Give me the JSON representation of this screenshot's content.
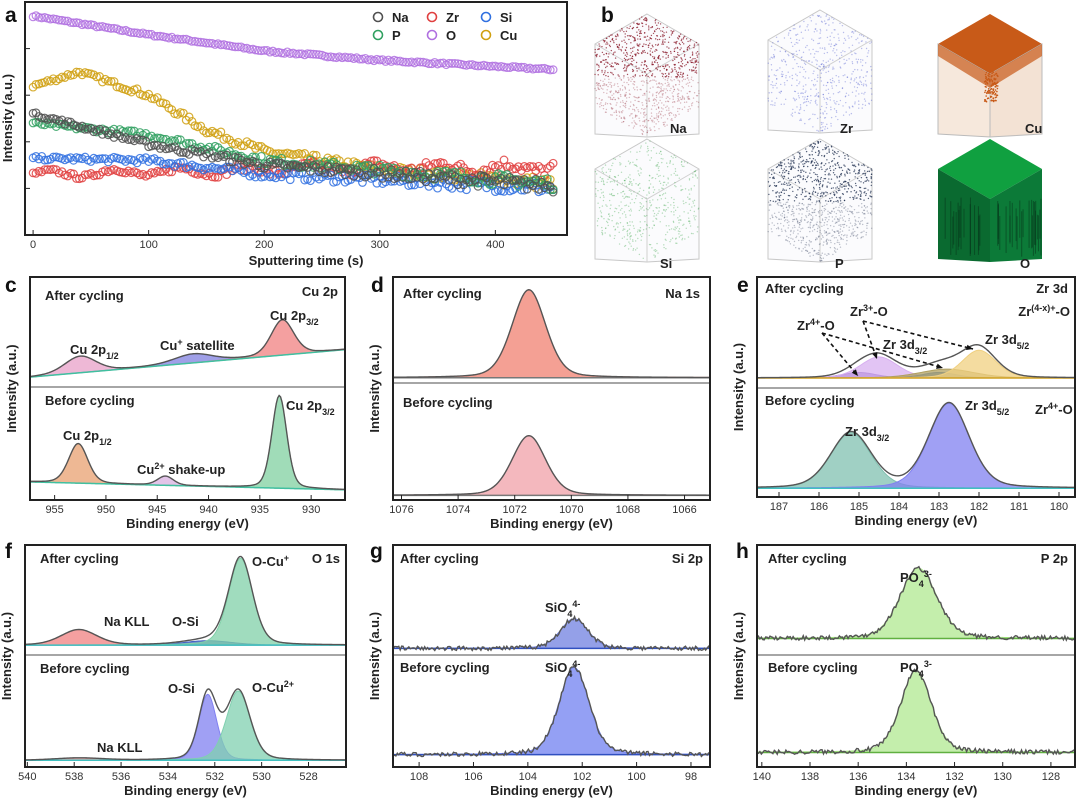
{
  "figure": {
    "panel_letters": [
      "a",
      "b",
      "c",
      "d",
      "e",
      "f",
      "g",
      "h"
    ]
  },
  "chart_data": [
    {
      "id": "a",
      "type": "scatter",
      "xlabel": "Sputtering time (s)",
      "ylabel": "Intensity (a.u.)",
      "xlim": [
        -7,
        462
      ],
      "ylim": [
        0,
        1
      ],
      "xticks": [
        0,
        100,
        200,
        300,
        400
      ],
      "legend": {
        "placement": "top-right",
        "entries": [
          "Na",
          "Zr",
          "Si",
          "P",
          "O",
          "Cu"
        ]
      },
      "series": [
        {
          "name": "O",
          "color": "#b070e0",
          "t": [
            0,
            100,
            200,
            300,
            450
          ],
          "values": [
            0.94,
            0.86,
            0.79,
            0.75,
            0.71
          ]
        },
        {
          "name": "Cu",
          "color": "#d0a010",
          "t": [
            0,
            40,
            100,
            150,
            200,
            300,
            450
          ],
          "values": [
            0.64,
            0.7,
            0.6,
            0.45,
            0.36,
            0.28,
            0.22
          ]
        },
        {
          "name": "Zr",
          "color": "#e04040",
          "t": [
            0,
            100,
            300,
            450
          ],
          "values": [
            0.26,
            0.27,
            0.29,
            0.29
          ]
        },
        {
          "name": "Si",
          "color": "#3070e0",
          "t": [
            0,
            100,
            200,
            450
          ],
          "values": [
            0.33,
            0.32,
            0.26,
            0.2
          ]
        },
        {
          "name": "P",
          "color": "#30a060",
          "t": [
            0,
            100,
            200,
            450
          ],
          "values": [
            0.48,
            0.43,
            0.32,
            0.22
          ]
        },
        {
          "name": "Na",
          "color": "#505050",
          "t": [
            0,
            100,
            200,
            450
          ],
          "values": [
            0.52,
            0.39,
            0.3,
            0.21
          ]
        }
      ]
    },
    {
      "id": "b",
      "type": "3d-element-maps",
      "maps": [
        {
          "element": "Na",
          "color": "#8a1a2a",
          "density": "medium"
        },
        {
          "element": "Zr",
          "color": "#3848c8",
          "density": "sparse"
        },
        {
          "element": "Cu",
          "color": "#c85a18",
          "density": "dense-top"
        },
        {
          "element": "Si",
          "color": "#30a040",
          "density": "sparse"
        },
        {
          "element": "P",
          "color": "#203050",
          "density": "medium"
        },
        {
          "element": "O",
          "color": "#10a040",
          "density": "dense"
        }
      ]
    },
    {
      "id": "c",
      "type": "line",
      "title": "Cu 2p",
      "xlabel": "Binding energy (eV)",
      "ylabel": "Intensity (a.u.)",
      "xlim": [
        957.4,
        926.7
      ],
      "xticks": [
        955,
        950,
        945,
        940,
        935,
        930
      ],
      "halves": [
        {
          "label": "After cycling",
          "baseline": [
            0.09,
            0.34
          ],
          "baseline_color": "#40c0a0",
          "peaks": [
            {
              "name": "Cu 2p1/2",
              "center": 952.5,
              "height": 0.15,
              "width": 1.8,
              "color": "#e8a0c8"
            },
            {
              "name": "Cu+ satellite",
              "center": 941.5,
              "height": 0.08,
              "width": 2.2,
              "color": "#8080e0"
            },
            {
              "name": "Cu 2p3/2",
              "center": 932.8,
              "height": 0.32,
              "width": 1.3,
              "color": "#f08080"
            }
          ],
          "annotations": [
            [
              [
                "Cu 2p",
                ""
              ],
              [
                "3/2",
                "sub"
              ]
            ],
            [
              [
                "Cu 2p",
                ""
              ],
              [
                "1/2",
                "sub"
              ]
            ],
            [
              [
                "Cu",
                ""
              ],
              [
                "+",
                "sup"
              ],
              [
                " satellite",
                ""
              ]
            ]
          ]
        },
        {
          "label": "Before cycling",
          "baseline": [
            0.16,
            0.09
          ],
          "baseline_color": "#40c0a0",
          "peaks": [
            {
              "name": "Cu 2p1/2",
              "center": 952.7,
              "height": 0.35,
              "width": 1.1,
              "color": "#e8a070"
            },
            {
              "name": "Cu2+ shake-up",
              "center": 944.2,
              "height": 0.08,
              "width": 0.9,
              "color": "#d8b0e0"
            },
            {
              "name": "Cu 2p3/2",
              "center": 933.1,
              "height": 0.82,
              "width": 0.85,
              "color": "#80d0a0"
            }
          ],
          "annotations": [
            [
              [
                "Cu 2p",
                ""
              ],
              [
                "1/2",
                "sub"
              ]
            ],
            [
              [
                "Cu",
                ""
              ],
              [
                "2+",
                "sup"
              ],
              [
                " shake-up",
                ""
              ]
            ],
            [
              [
                "Cu 2p",
                ""
              ],
              [
                "3/2",
                "sub"
              ]
            ]
          ]
        }
      ]
    },
    {
      "id": "d",
      "type": "line",
      "title": "Na 1s",
      "xlabel": "Binding energy (eV)",
      "ylabel": "Intensity (a.u.)",
      "xlim": [
        1076.3,
        1065.1
      ],
      "xticks": [
        1076,
        1074,
        1072,
        1070,
        1068,
        1066
      ],
      "halves": [
        {
          "label": "After cycling",
          "baseline": [
            0.05,
            0.05
          ],
          "baseline_color": "#777777",
          "peaks": [
            {
              "name": "Na 1s",
              "center": 1071.5,
              "height": 0.83,
              "width": 0.7,
              "color": "#f08070"
            }
          ],
          "annotations": []
        },
        {
          "label": "Before cycling",
          "baseline": [
            0.04,
            0.04
          ],
          "baseline_color": "#777777",
          "peaks": [
            {
              "name": "Na 1s",
              "center": 1071.5,
              "height": 0.51,
              "width": 0.7,
              "color": "#f0a0a8"
            }
          ],
          "annotations": []
        }
      ]
    },
    {
      "id": "e",
      "type": "line",
      "title": "Zr 3d",
      "xlabel": "Binding energy (eV)",
      "ylabel": "Intensity (a.u.)",
      "xlim": [
        187.55,
        179.6
      ],
      "xticks": [
        187,
        186,
        185,
        184,
        183,
        182,
        181,
        180
      ],
      "halves": [
        {
          "label": "After cycling",
          "baseline": [
            0.09,
            0.09
          ],
          "baseline_color": "#d0a020",
          "peaks": [
            {
              "name": "Zr4+-O 3d3/2",
              "center": 185.0,
              "height": 0.05,
              "width": 0.5,
              "color": "#7050b0"
            },
            {
              "name": "Zr3+-O 3d3/2",
              "center": 184.5,
              "height": 0.19,
              "width": 0.55,
              "color": "#d8b0f0"
            },
            {
              "name": "Zr4+-O 3d5/2",
              "center": 183.0,
              "height": 0.05,
              "width": 0.5,
              "color": "#5080d0"
            },
            {
              "name": "Zr(4-x)+-O",
              "center": 182.8,
              "height": 0.08,
              "width": 0.8,
              "color": "#b0a060"
            },
            {
              "name": "Zr3+-O 3d5/2",
              "center": 182.0,
              "height": 0.25,
              "width": 0.5,
              "color": "#f0d080"
            }
          ],
          "annotations": [
            [
              [
                "Zr",
                ""
              ],
              [
                "(4-x)+",
                "sup"
              ],
              [
                "-O",
                ""
              ]
            ],
            [
              [
                "Zr",
                ""
              ],
              [
                "3+",
                "sup"
              ],
              [
                "-O",
                ""
              ]
            ],
            [
              [
                "Zr",
                ""
              ],
              [
                "4+",
                "sup"
              ],
              [
                "-O",
                ""
              ]
            ],
            [
              [
                "Zr 3d",
                ""
              ],
              [
                "3/2",
                "sub"
              ]
            ],
            [
              [
                "Zr 3d",
                ""
              ],
              [
                "5/2",
                "sub"
              ]
            ]
          ]
        },
        {
          "label": "Before cycling",
          "baseline": [
            0.08,
            0.08
          ],
          "baseline_color": "#40c0c0",
          "peaks": [
            {
              "name": "Zr 3d3/2",
              "center": 185.2,
              "height": 0.51,
              "width": 0.6,
              "color": "#80c0b0"
            },
            {
              "name": "Zr 3d5/2",
              "center": 182.75,
              "height": 0.78,
              "width": 0.6,
              "color": "#8080f0"
            }
          ],
          "annotations": [
            [
              [
                "Zr 3d",
                ""
              ],
              [
                "5/2",
                "sub"
              ]
            ],
            [
              [
                "Zr",
                ""
              ],
              [
                "4+",
                "sup"
              ],
              [
                "-O",
                ""
              ]
            ],
            [
              [
                "Zr 3d",
                ""
              ],
              [
                "3/2",
                "sub"
              ]
            ]
          ]
        }
      ]
    },
    {
      "id": "f",
      "type": "line",
      "title": "O 1s",
      "xlabel": "Binding energy (eV)",
      "ylabel": "Intensity (a.u.)",
      "xlim": [
        540.1,
        526.4
      ],
      "xticks": [
        540,
        538,
        536,
        534,
        532,
        530,
        528
      ],
      "halves": [
        {
          "label": "After cycling",
          "baseline": [
            0.09,
            0.09
          ],
          "baseline_color": "#40c0c0",
          "peaks": [
            {
              "name": "Na KLL",
              "center": 537.8,
              "height": 0.14,
              "width": 0.9,
              "color": "#f08080"
            },
            {
              "name": "O-Si",
              "center": 532.3,
              "height": 0.04,
              "width": 1.2,
              "color": "#4060c0"
            },
            {
              "name": "O-Cu+",
              "center": 530.9,
              "height": 0.79,
              "width": 0.6,
              "color": "#80d0a8"
            }
          ],
          "annotations": [
            [
              [
                "O-Cu",
                ""
              ],
              [
                "+",
                "sup"
              ]
            ],
            [
              [
                "Na KLL",
                ""
              ]
            ],
            [
              [
                "O-Si",
                ""
              ]
            ]
          ]
        },
        {
          "label": "Before cycling",
          "baseline": [
            0.06,
            0.06
          ],
          "baseline_color": "#40c0c0",
          "peaks": [
            {
              "name": "Na KLL",
              "center": 537.8,
              "height": 0.02,
              "width": 1.2,
              "color": "#e09090"
            },
            {
              "name": "O-Si",
              "center": 532.3,
              "height": 0.59,
              "width": 0.45,
              "color": "#8080f0"
            },
            {
              "name": "O-Cu2+",
              "center": 531.0,
              "height": 0.62,
              "width": 0.6,
              "color": "#80d0b0"
            }
          ],
          "annotations": [
            [
              [
                "O-Si",
                ""
              ]
            ],
            [
              [
                "O-Cu",
                ""
              ],
              [
                "2+",
                "sup"
              ]
            ],
            [
              [
                "Na KLL",
                ""
              ]
            ]
          ]
        }
      ]
    },
    {
      "id": "g",
      "type": "line",
      "title": "Si  2p",
      "xlabel": "Binding energy (eV)",
      "ylabel": "Intensity (a.u.)",
      "xlim": [
        108.96,
        97.3
      ],
      "xticks": [
        108,
        106,
        104,
        102,
        100,
        98
      ],
      "halves": [
        {
          "label": "After cycling",
          "baseline": [
            0.06,
            0.06
          ],
          "baseline_color": "#3050c0",
          "peaks": [
            {
              "name": "SiO4 4-",
              "center": 102.3,
              "height": 0.27,
              "width": 0.6,
              "color": "#7080e0"
            }
          ],
          "annotations": [
            [
              [
                "SiO",
                ""
              ],
              [
                "4",
                "sub"
              ],
              [
                "4-",
                "sup"
              ]
            ]
          ]
        },
        {
          "label": "Before cycling",
          "baseline": [
            0.11,
            0.11
          ],
          "baseline_color": "#3050c0",
          "peaks": [
            {
              "name": "SiO4 4-",
              "center": 102.3,
              "height": 0.78,
              "width": 0.65,
              "color": "#7080f0"
            }
          ],
          "annotations": [
            [
              [
                "SiO",
                ""
              ],
              [
                "4",
                "sub"
              ],
              [
                "4-",
                "sup"
              ]
            ]
          ]
        }
      ]
    },
    {
      "id": "h",
      "type": "line",
      "title": "P 2p",
      "xlabel": "Binding energy (eV)",
      "ylabel": "Intensity (a.u.)",
      "xlim": [
        140.2,
        127.0
      ],
      "xticks": [
        140,
        138,
        136,
        134,
        132,
        130,
        128
      ],
      "halves": [
        {
          "label": "After cycling",
          "baseline": [
            0.15,
            0.15
          ],
          "baseline_color": "#60b040",
          "peaks": [
            {
              "name": "PO4 3-",
              "center": 133.5,
              "height": 0.64,
              "width": 0.9,
              "color": "#b0e890"
            }
          ],
          "annotations": [
            [
              [
                "PO",
                ""
              ],
              [
                "4",
                "sub"
              ],
              [
                "3-",
                "sup"
              ]
            ]
          ]
        },
        {
          "label": "Before cycling",
          "baseline": [
            0.13,
            0.13
          ],
          "baseline_color": "#60b040",
          "peaks": [
            {
              "name": "PO4 3-",
              "center": 133.6,
              "height": 0.73,
              "width": 0.75,
              "color": "#b0e890"
            }
          ],
          "annotations": [
            [
              [
                "PO",
                ""
              ],
              [
                "4",
                "sub"
              ],
              [
                "3-",
                "sup"
              ]
            ]
          ]
        }
      ]
    }
  ]
}
